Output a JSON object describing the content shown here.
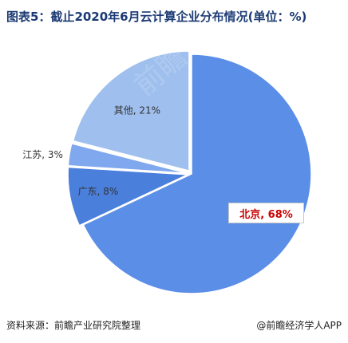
{
  "title": "图表5：截止2020年6月云计算企业分布情况(单位：%)",
  "source": "资料来源：前瞻产业研究院整理",
  "credit": "@前瞻经济学人APP",
  "watermark": "前瞻产业研究院",
  "colors": {
    "beijing": "#5b8ee6",
    "guangdong": "#4a7fdc",
    "jiangsu": "#7fa8ee",
    "other": "#9fbfee",
    "title": "#1b3a73",
    "highlight_text": "#cc0000"
  },
  "chart_data": {
    "type": "pie",
    "title": "图表5：截止2020年6月云计算企业分布情况(单位：%)",
    "unit": "%",
    "start_angle_deg": 0,
    "direction": "clockwise",
    "slices": [
      {
        "label": "北京",
        "value": 68,
        "text": "北京, 68%",
        "color": "#5b8ee6",
        "highlight": true
      },
      {
        "label": "广东",
        "value": 8,
        "text": "广东, 8%",
        "color": "#4a7fdc",
        "highlight": false
      },
      {
        "label": "江苏",
        "value": 3,
        "text": "江苏, 3%",
        "color": "#7fa8ee",
        "highlight": false
      },
      {
        "label": "其他",
        "value": 21,
        "text": "其他, 21%",
        "color": "#9fbfee",
        "highlight": false
      }
    ]
  }
}
